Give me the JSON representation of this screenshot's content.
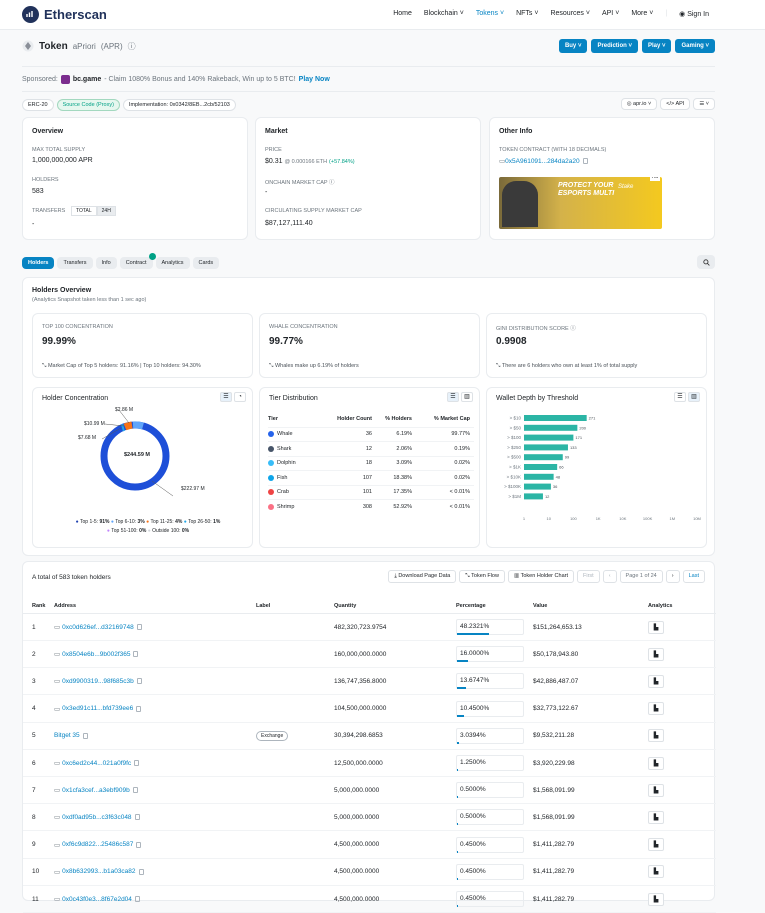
{
  "header": {
    "brand": "Etherscan",
    "nav": [
      "Home",
      "Blockchain",
      "Tokens",
      "NFTs",
      "Resources",
      "API",
      "More",
      "Sign In"
    ],
    "active_nav": "Tokens"
  },
  "token": {
    "label": "Token",
    "name": "aPriori",
    "symbol": "(APR)",
    "buttons": [
      "Buy",
      "Prediction",
      "Play",
      "Gaming"
    ]
  },
  "sponsor": {
    "prefix": "Sponsored:",
    "brand": "bc.game",
    "text": "- Claim 1080% Bonus and 140% Rakeback, Win up to 5 BTC!",
    "cta": "Play Now"
  },
  "pills": {
    "erc": "ERC-20",
    "source": "Source Code (Proxy)",
    "impl": "Implementation: 0x0342/8EB...2cb/52103",
    "right": [
      "apr.io",
      "API",
      ""
    ]
  },
  "overview": {
    "title": "Overview",
    "max_supply_label": "MAX TOTAL SUPPLY",
    "max_supply": "1,000,000,000 APR",
    "holders_label": "HOLDERS",
    "holders": "583",
    "transfers_label": "TRANSFERS",
    "transfers_tabs": [
      "TOTAL",
      "24H"
    ],
    "transfers": "-"
  },
  "market": {
    "title": "Market",
    "price_label": "PRICE",
    "price": "$0.31",
    "price_eth": "@ 0.000166 ETH",
    "price_change": "(+57.84%)",
    "onchain_label": "ONCHAIN MARKET CAP",
    "onchain": "-",
    "circ_label": "CIRCULATING SUPPLY MARKET CAP",
    "circ": "$87,127,111.40"
  },
  "other": {
    "title": "Other Info",
    "contract_label": "TOKEN CONTRACT (WITH 18 DECIMALS)",
    "contract": "0x5A961091...284da2a20",
    "ad_text": "PROTECT YOUR ESPORTS MULTI",
    "ad_brand": "Stake",
    "ad_tag": "Ad"
  },
  "tabs": [
    "Holders",
    "Transfers",
    "Info",
    "Contract",
    "Analytics",
    "Cards"
  ],
  "holders_overview": {
    "title": "Holders Overview",
    "subtitle": "(Analytics Snapshot taken less than 1 sec ago)",
    "stats": [
      {
        "label": "TOP 100 CONCENTRATION",
        "value": "99.99%",
        "note": "Market Cap of Top 5 holders: 91.16% | Top 10 holders: 94.30%"
      },
      {
        "label": "WHALE CONCENTRATION",
        "value": "99.77%",
        "note": "Whales make up 6.19% of holders"
      },
      {
        "label": "GINI DISTRIBUTION SCORE",
        "value": "0.9908",
        "note": "There are 6 holders who own at least 1% of total supply"
      }
    ]
  },
  "concentration": {
    "title": "Holder Concentration",
    "labels": [
      "$2.86 M",
      "$10.99 M",
      "$7.68 M",
      "$244.59 M",
      "$222.97 M"
    ],
    "legend": [
      {
        "name": "Top 1-5:",
        "pct": "91%",
        "color": "#1e40af"
      },
      {
        "name": "Top 6-10:",
        "pct": "3%",
        "color": "#60a5fa"
      },
      {
        "name": "Top 11-25:",
        "pct": "4%",
        "color": "#f97316"
      },
      {
        "name": "Top 26-50:",
        "pct": "1%",
        "color": "#22a6e6"
      },
      {
        "name": "Top 51-100:",
        "pct": "0%",
        "color": "#c084fc"
      },
      {
        "name": "Outside 100:",
        "pct": "0%",
        "color": "#d1d5db"
      }
    ]
  },
  "tier": {
    "title": "Tier Distribution",
    "headers": [
      "Tier",
      "Holder Count",
      "% Holders",
      "% Market Cap"
    ],
    "rows": [
      {
        "tier": "Whale",
        "count": "36",
        "holders": "6.19%",
        "mcap": "99.77%",
        "color": "#2563eb"
      },
      {
        "tier": "Shark",
        "count": "12",
        "holders": "2.06%",
        "mcap": "0.19%",
        "color": "#475569"
      },
      {
        "tier": "Dolphin",
        "count": "18",
        "holders": "3.09%",
        "mcap": "0.02%",
        "color": "#38bdf8"
      },
      {
        "tier": "Fish",
        "count": "107",
        "holders": "18.38%",
        "mcap": "0.02%",
        "color": "#0ea5e9"
      },
      {
        "tier": "Crab",
        "count": "101",
        "holders": "17.35%",
        "mcap": "< 0.01%",
        "color": "#ef4444"
      },
      {
        "tier": "Shrimp",
        "count": "308",
        "holders": "52.92%",
        "mcap": "< 0.01%",
        "color": "#fb7185"
      }
    ]
  },
  "depth": {
    "title": "Wallet Depth by Threshold",
    "x_ticks": [
      "1",
      "10",
      "100",
      "1K",
      "10K",
      "100K",
      "1M",
      "10M"
    ]
  },
  "chart_data": {
    "type": "bar",
    "orientation": "horizontal",
    "title": "Wallet Depth by Threshold",
    "categories": [
      "> $10",
      "> $50",
      "> $100",
      "> $250",
      "> $500",
      "> $1K",
      "> $10K",
      "> $100K",
      "> $1M"
    ],
    "values": [
      271,
      200,
      171,
      133,
      99,
      66,
      48,
      36,
      12
    ],
    "x_scale": "log"
  },
  "holders_table": {
    "total_text": "A total of 583 token holders",
    "controls": [
      "Download Page Data",
      "Token Flow",
      "Token Holder Chart",
      "First",
      "Page 1 of 24",
      "",
      "",
      "Last"
    ],
    "headers": [
      "Rank",
      "Address",
      "Label",
      "Quantity",
      "Percentage",
      "Value",
      "Analytics"
    ],
    "rows": [
      {
        "rank": "1",
        "address": "0xc0d626ef...d32169748",
        "label": "",
        "qty": "482,320,723.9754",
        "pct": "48.2321%",
        "value": "$151,264,653.13",
        "frac": 0.482
      },
      {
        "rank": "2",
        "address": "0x8504e6b...9b002f365",
        "label": "",
        "qty": "160,000,000.0000",
        "pct": "16.0000%",
        "value": "$50,178,943.80",
        "frac": 0.16
      },
      {
        "rank": "3",
        "address": "0xd9900319...98f685c3b",
        "label": "",
        "qty": "136,747,356.8000",
        "pct": "13.6747%",
        "value": "$42,886,487.07",
        "frac": 0.137
      },
      {
        "rank": "4",
        "address": "0x3ed91c11...bfd739ee6",
        "label": "",
        "qty": "104,500,000.0000",
        "pct": "10.4500%",
        "value": "$32,773,122.67",
        "frac": 0.105
      },
      {
        "rank": "5",
        "address": "Bitget 35",
        "label": "Exchange",
        "qty": "30,394,298.6853",
        "pct": "3.0394%",
        "value": "$9,532,211.28",
        "frac": 0.03
      },
      {
        "rank": "6",
        "address": "0xc6ed2c44...021a0f9fc",
        "label": "",
        "qty": "12,500,000.0000",
        "pct": "1.2500%",
        "value": "$3,920,229.98",
        "frac": 0.0125
      },
      {
        "rank": "7",
        "address": "0x1cfa3cef...a3ebf909b",
        "label": "",
        "qty": "5,000,000.0000",
        "pct": "0.5000%",
        "value": "$1,568,091.99",
        "frac": 0.005
      },
      {
        "rank": "8",
        "address": "0xdf0ad95b...c3f63c048",
        "label": "",
        "qty": "5,000,000.0000",
        "pct": "0.5000%",
        "value": "$1,568,091.99",
        "frac": 0.005
      },
      {
        "rank": "9",
        "address": "0xf6c9d822...25486c587",
        "label": "",
        "qty": "4,500,000.0000",
        "pct": "0.4500%",
        "value": "$1,411,282.79",
        "frac": 0.0045
      },
      {
        "rank": "10",
        "address": "0x8b632993...b1a03ca82",
        "label": "",
        "qty": "4,500,000.0000",
        "pct": "0.4500%",
        "value": "$1,411,282.79",
        "frac": 0.0045
      },
      {
        "rank": "11",
        "address": "0x0c43f0e3...8f67e2d04",
        "label": "",
        "qty": "4,500,000.0000",
        "pct": "0.4500%",
        "value": "$1,411,282.79",
        "frac": 0.0045
      }
    ]
  }
}
